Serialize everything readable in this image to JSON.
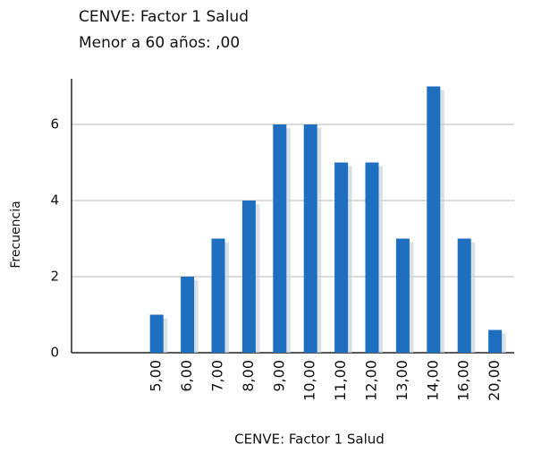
{
  "chart_data": {
    "type": "bar",
    "title": "CENVE: Factor 1 Salud",
    "subtitle": "Menor a 60 años: ,00",
    "xlabel": "CENVE: Factor 1 Salud",
    "ylabel": "Frecuencia",
    "categories": [
      "5,00",
      "6,00",
      "7,00",
      "8,00",
      "9,00",
      "10,00",
      "11,00",
      "12,00",
      "13,00",
      "14,00",
      "16,00",
      "20,00"
    ],
    "values": [
      1,
      2,
      3,
      4,
      6,
      6,
      5,
      5,
      3,
      7,
      3,
      0.6
    ],
    "color": "#1f6fc0",
    "ylim": [
      0,
      7.2
    ],
    "yticks": [
      0,
      2,
      4,
      6
    ],
    "grid": true
  }
}
